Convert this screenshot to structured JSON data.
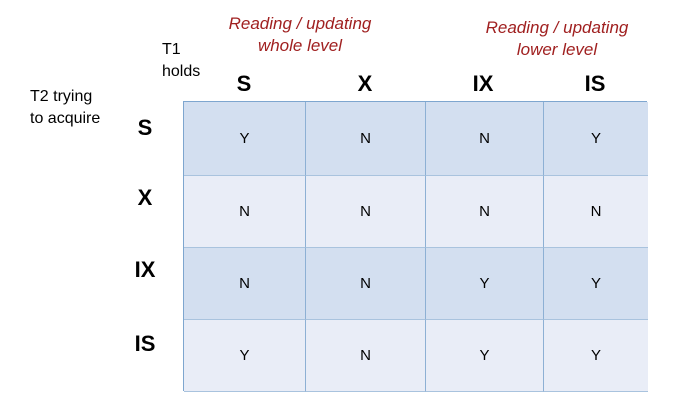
{
  "annotations": {
    "whole_line1": "Reading / updating",
    "whole_line2": "whole level",
    "lower_line1": "Reading / updating",
    "lower_line2": "lower level"
  },
  "labels": {
    "t1_line1": "T1",
    "t1_line2": "holds",
    "t2_line1": "T2 trying",
    "t2_line2": "to acquire"
  },
  "column_headers": [
    "S",
    "X",
    "IX",
    "IS"
  ],
  "row_headers": [
    "S",
    "X",
    "IX",
    "IS"
  ],
  "rows": [
    [
      "Y",
      "N",
      "N",
      "Y"
    ],
    [
      "N",
      "N",
      "N",
      "N"
    ],
    [
      "N",
      "N",
      "Y",
      "Y"
    ],
    [
      "Y",
      "N",
      "Y",
      "Y"
    ]
  ]
}
